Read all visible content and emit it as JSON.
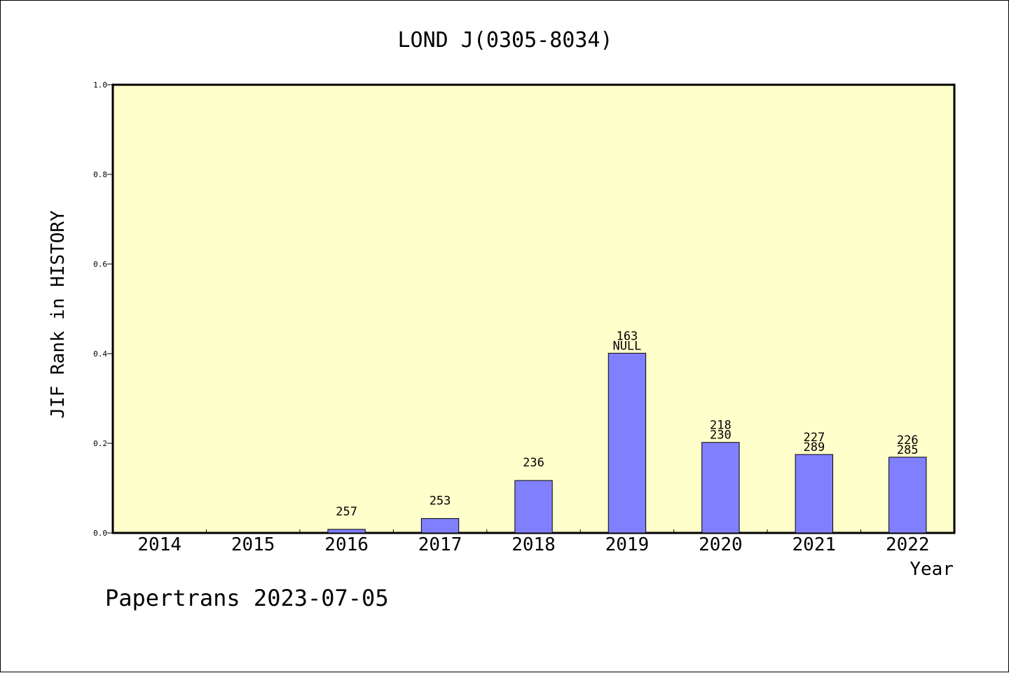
{
  "chart_data": {
    "type": "bar",
    "title": "LOND J(0305-8034)",
    "xlabel": "Year",
    "ylabel": "JIF Rank in HISTORY",
    "ylim": [
      0,
      1.0
    ],
    "yticks": [
      "0.0",
      "0.2",
      "0.4",
      "0.6",
      "0.8",
      "1.0"
    ],
    "categories": [
      "2014",
      "2015",
      "2016",
      "2017",
      "2018",
      "2019",
      "2020",
      "2021",
      "2022"
    ],
    "values": [
      0,
      0,
      0.008,
      0.032,
      0.117,
      0.401,
      0.202,
      0.175,
      0.169
    ],
    "bar_labels": [
      [],
      [],
      [
        "257"
      ],
      [
        "253"
      ],
      [
        "236"
      ],
      [
        "163",
        "NULL"
      ],
      [
        "218",
        "230"
      ],
      [
        "227",
        "289"
      ],
      [
        "226",
        "285"
      ]
    ],
    "grid": false,
    "legend": "none",
    "colors": {
      "plot_background": "#ffffcc",
      "bar_fill": "#8080ff",
      "bar_stroke": "#000000"
    }
  },
  "footer": {
    "text": "Papertrans 2023-07-05"
  }
}
